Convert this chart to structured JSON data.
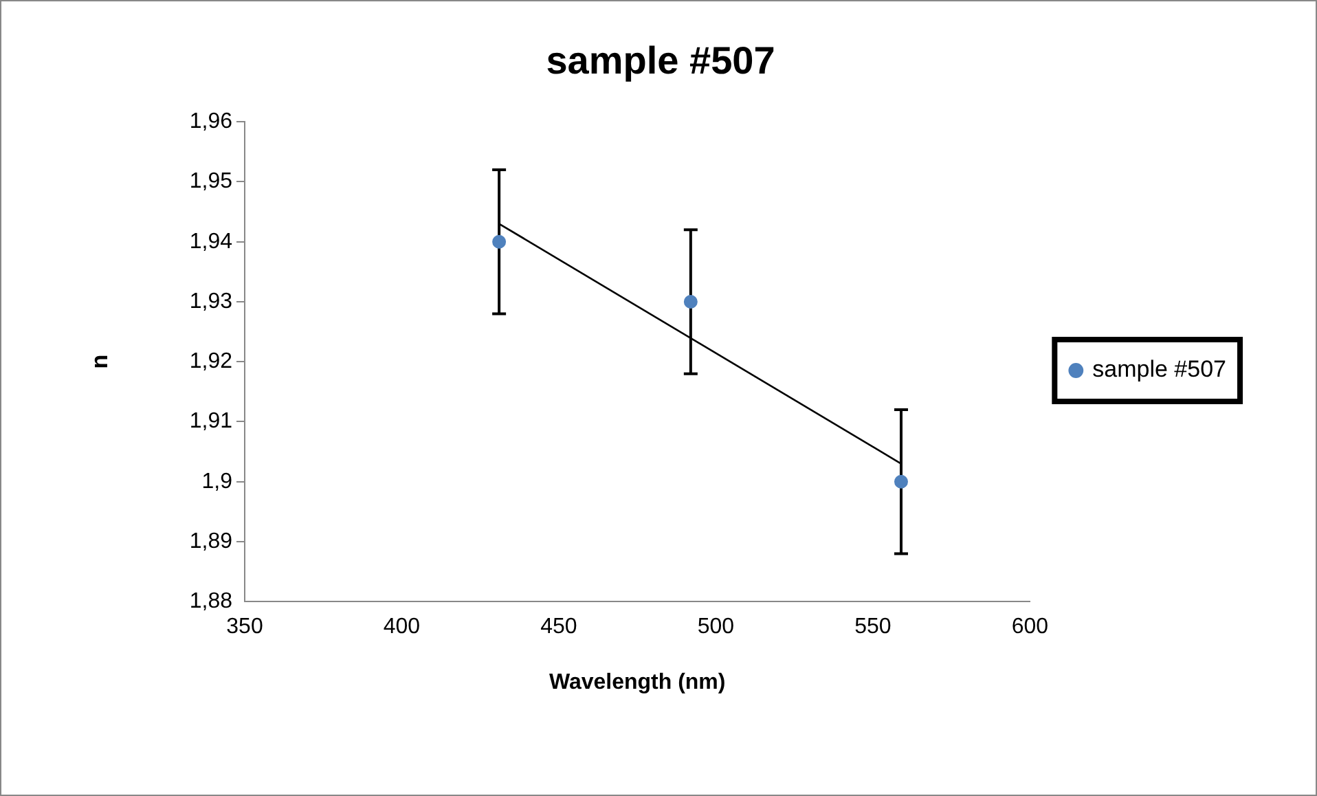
{
  "chart_data": {
    "type": "scatter",
    "title": "sample #507",
    "xlabel": "Wavelength (nm)",
    "ylabel": "n",
    "xlim": [
      350,
      600
    ],
    "xticks": [
      350,
      400,
      450,
      500,
      550,
      600
    ],
    "ylim": [
      1.88,
      1.96
    ],
    "yticks": [
      {
        "value": 1.88,
        "label": "1,88"
      },
      {
        "value": 1.89,
        "label": "1,89"
      },
      {
        "value": 1.9,
        "label": "1,9"
      },
      {
        "value": 1.91,
        "label": "1,91"
      },
      {
        "value": 1.92,
        "label": "1,92"
      },
      {
        "value": 1.93,
        "label": "1,93"
      },
      {
        "value": 1.94,
        "label": "1,94"
      },
      {
        "value": 1.95,
        "label": "1,95"
      },
      {
        "value": 1.96,
        "label": "1,96"
      }
    ],
    "grid": false,
    "legend": "right",
    "series": [
      {
        "name": "sample #507",
        "type": "scatter",
        "color": "#4f81bd",
        "marker": "circle",
        "x": [
          431,
          492,
          559
        ],
        "values": [
          1.94,
          1.93,
          1.9
        ],
        "errors": [
          0.012,
          0.012,
          0.012
        ]
      },
      {
        "type": "line",
        "color": "#000000",
        "x": [
          431,
          559
        ],
        "values": [
          1.943,
          1.903
        ],
        "line_style": "solid"
      }
    ]
  }
}
